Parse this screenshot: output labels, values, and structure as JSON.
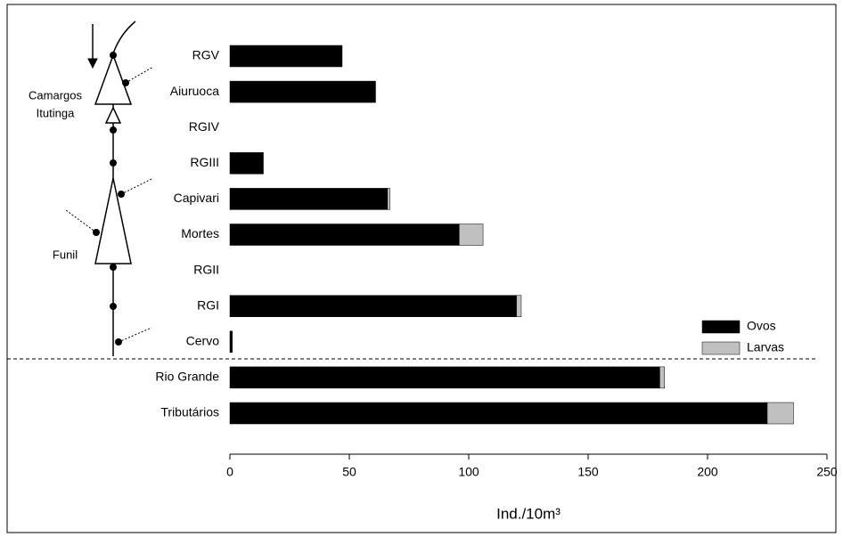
{
  "chart_data": {
    "type": "stacked-bar-horizontal",
    "categories": [
      "RGV",
      "Aiuruoca",
      "RGIV",
      "RGIII",
      "Capivari",
      "Mortes",
      "RGII",
      "RGI",
      "Cervo",
      "Rio Grande",
      "Tributários"
    ],
    "series": [
      {
        "name": "Ovos",
        "color": "#000000",
        "values": [
          47,
          61,
          0,
          14,
          66,
          96,
          0,
          120,
          1,
          180,
          225
        ]
      },
      {
        "name": "Larvas",
        "color": "#c0c0c0",
        "values": [
          0,
          0,
          0,
          0,
          1,
          10,
          0,
          2,
          0,
          2,
          11
        ]
      }
    ],
    "xlabel": "Ind./10m³",
    "xlim": [
      0,
      250
    ],
    "xticks": [
      0,
      50,
      100,
      150,
      200,
      250
    ],
    "annotations": [
      "Camargos",
      "Itutinga",
      "Funil"
    ],
    "legend": "lower-right"
  }
}
